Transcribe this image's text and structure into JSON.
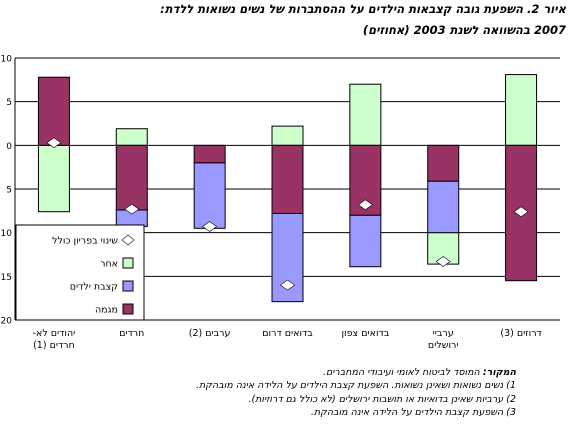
{
  "title_line1": "איור 2. השפעת גובה קצבאות הילדים על ההסתברות של נשים נשואות ללדת:",
  "title_line2": "2007 בהשוואה לשנת 2003 (אחוזים)",
  "notes": {
    "source_label": "המקור:",
    "source_text": "המוסד לביטוח לאומי ועיבודי המחברים.",
    "items": [
      "1) נשים נשואות ושאינן נשואות. השפעת קצבת הילדים על הלידה אינה מובהקת.",
      "2) ערביות שאינן בדואיות או תושבות ירושלים (לא כולל גם דרוזיות).",
      "3) השפעת קצבת הילדים על הלידה אינה מובהקת."
    ]
  },
  "chart_data": {
    "type": "bar",
    "stacked": true,
    "ylim": [
      -20,
      10
    ],
    "yticks": [
      -20,
      -15,
      -10,
      -5,
      0,
      5,
      10
    ],
    "ytick_labels": [
      "20",
      "15",
      "10",
      "5",
      "0",
      "5",
      "10"
    ],
    "grid": true,
    "legend_position": "bottom-left",
    "categories": [
      [
        "יהודים לא-",
        "חרדים (1)"
      ],
      [
        "חרדים"
      ],
      [
        "ערבים (2)"
      ],
      [
        "בדואים דרום"
      ],
      [
        "בדואים צפון"
      ],
      [
        "ערביי",
        "ירושלים"
      ],
      [
        "דרוזים (3)"
      ]
    ],
    "series": [
      {
        "name": "אחר",
        "color": "#ccffcc",
        "segments": [
          [
            -7.6,
            0
          ],
          [
            0,
            1.9
          ],
          [
            0,
            0
          ],
          [
            0,
            2.2
          ],
          [
            0,
            7.0
          ],
          [
            -13.6,
            -10.0
          ],
          [
            0,
            8.1
          ]
        ]
      },
      {
        "name": "קצבת ילדים",
        "color": "#9999ff",
        "segments": [
          [
            0,
            0
          ],
          [
            -9.3,
            -7.4
          ],
          [
            -9.5,
            -2.0
          ],
          [
            -17.9,
            -7.8
          ],
          [
            -13.9,
            -8.0
          ],
          [
            -10.0,
            -4.1
          ],
          [
            0,
            0
          ]
        ]
      },
      {
        "name": "מגמה",
        "color": "#993366",
        "segments": [
          [
            0,
            7.8
          ],
          [
            -7.4,
            0
          ],
          [
            -2.0,
            0
          ],
          [
            -7.8,
            0
          ],
          [
            -8.0,
            0
          ],
          [
            -4.1,
            0
          ],
          [
            -15.5,
            0
          ]
        ]
      }
    ],
    "total_series": {
      "name": "שינוי בפריון כולל",
      "marker": "diamond",
      "values": [
        0.3,
        -7.3,
        -9.3,
        -16.0,
        -6.8,
        -13.3,
        -7.6
      ]
    }
  }
}
